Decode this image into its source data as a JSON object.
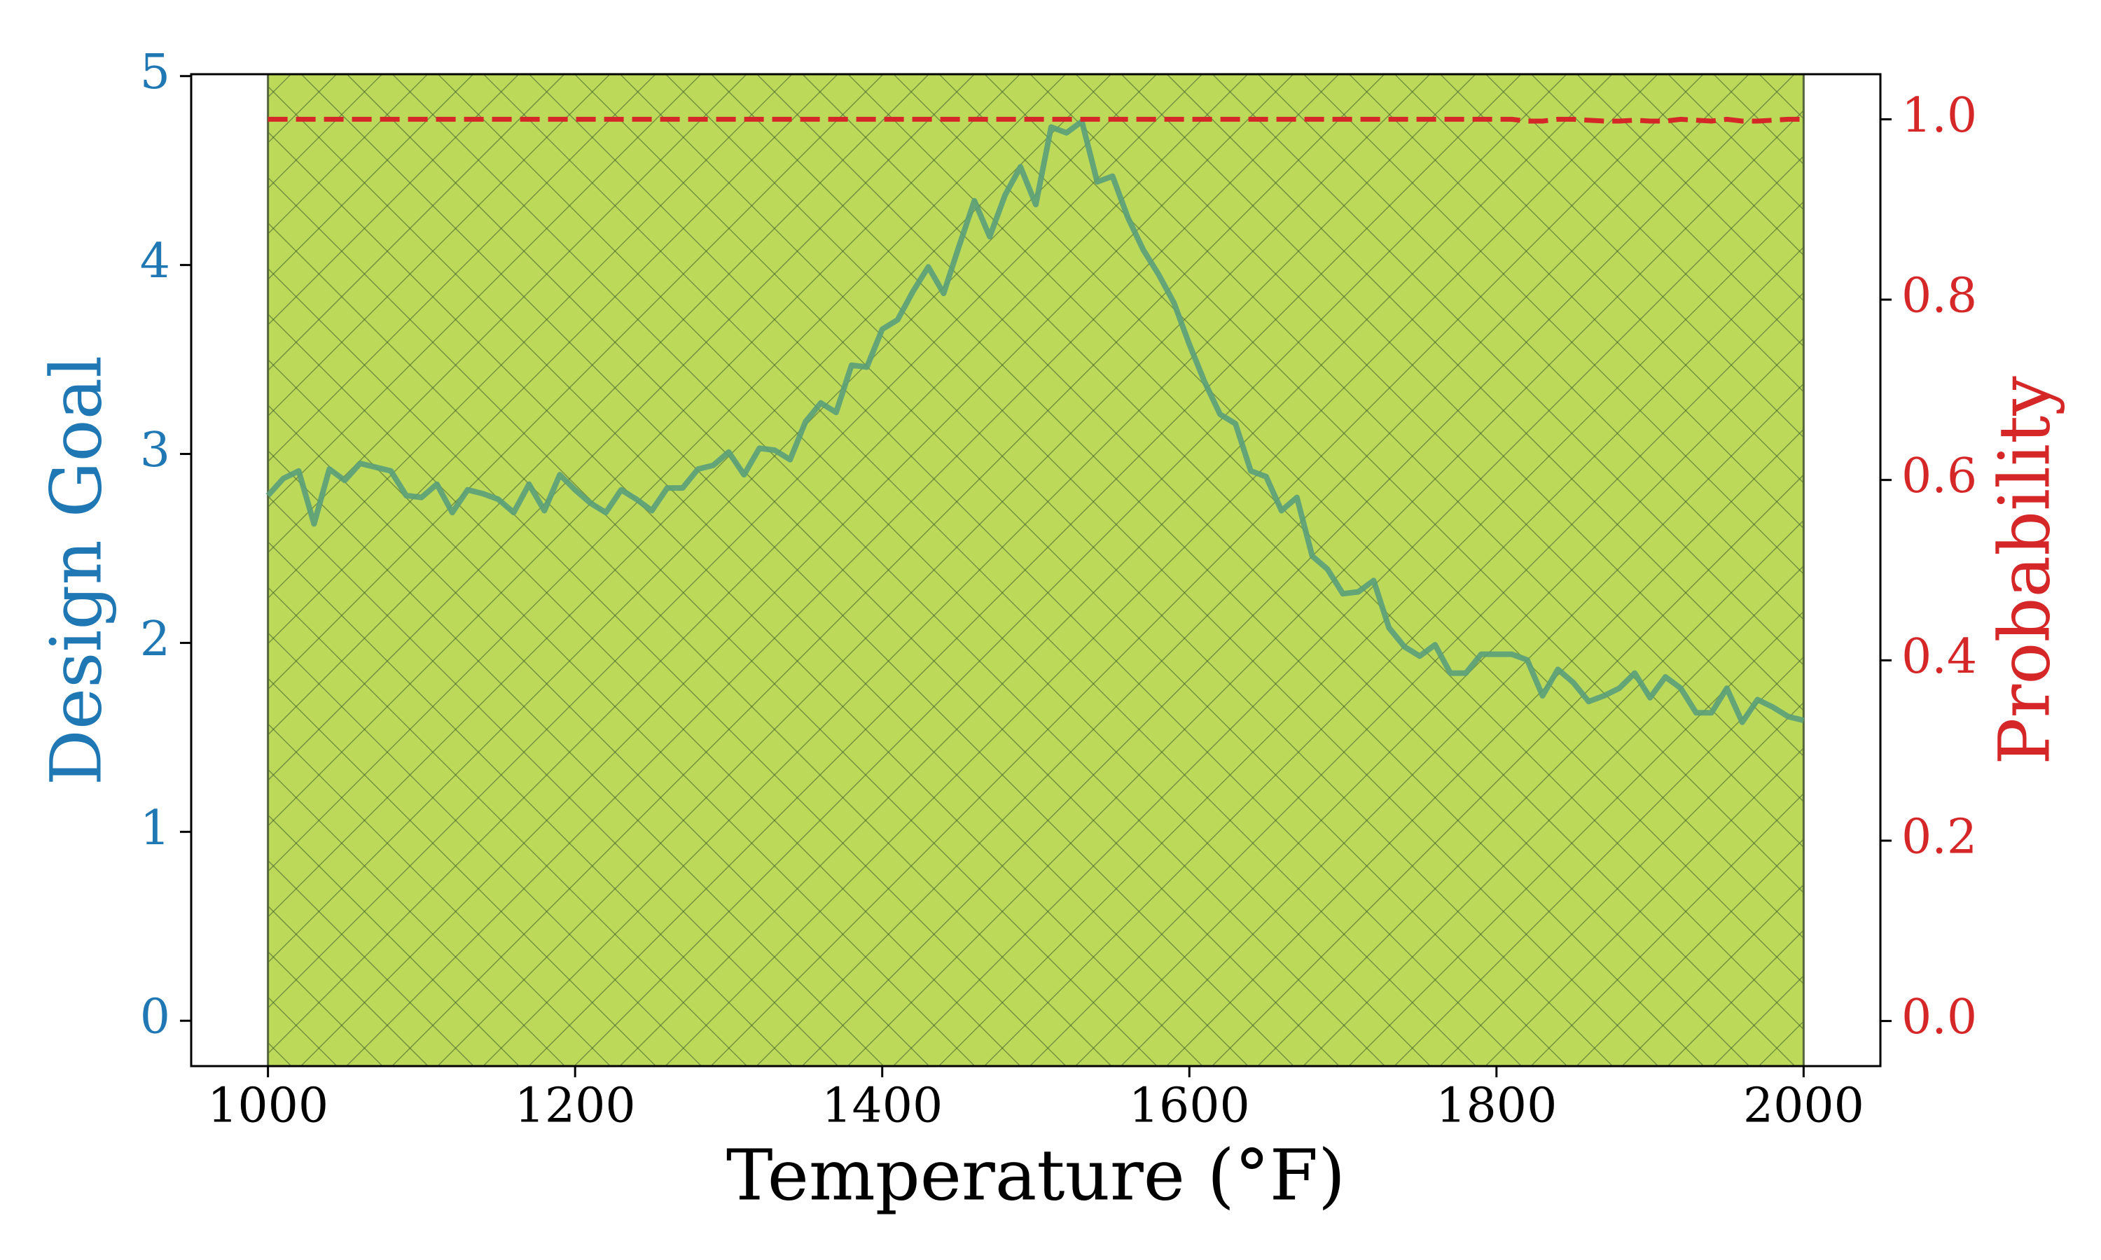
{
  "chart_data": {
    "type": "line",
    "x_label": "Temperature (°F)",
    "y_label": "Design Goal",
    "y2_label": "Probability",
    "xlim": [
      950,
      2050
    ],
    "xticks": [
      1000,
      1200,
      1400,
      1600,
      1800,
      2000
    ],
    "ylim": [
      -0.24,
      5.01
    ],
    "yticks": [
      0,
      1,
      2,
      3,
      4,
      5
    ],
    "y2lim": [
      -0.05,
      1.05
    ],
    "y2ticks": [
      {
        "value": 0,
        "label": "0.0"
      },
      {
        "value": 0.2,
        "label": "0.2"
      },
      {
        "value": 0.4,
        "label": "0.4"
      },
      {
        "value": 0.6,
        "label": "0.6"
      },
      {
        "value": 0.8,
        "label": "0.8"
      },
      {
        "value": 1,
        "label": "1.0"
      }
    ],
    "y_color": "#1f77b4",
    "y2_color": "#d62728",
    "span": {
      "x": [
        1000,
        2000
      ],
      "color": "#bcd95a"
    },
    "x": [
      1000,
      1010,
      1020,
      1030,
      1040,
      1050,
      1060,
      1070,
      1080,
      1090,
      1100,
      1110,
      1120,
      1130,
      1140,
      1150,
      1160,
      1170,
      1180,
      1190,
      1200,
      1210,
      1220,
      1230,
      1240,
      1250,
      1260,
      1270,
      1280,
      1290,
      1300,
      1310,
      1320,
      1330,
      1340,
      1350,
      1360,
      1370,
      1380,
      1390,
      1400,
      1410,
      1420,
      1430,
      1440,
      1450,
      1460,
      1470,
      1480,
      1490,
      1500,
      1510,
      1520,
      1530,
      1540,
      1550,
      1560,
      1570,
      1580,
      1590,
      1600,
      1610,
      1620,
      1630,
      1640,
      1650,
      1660,
      1670,
      1680,
      1690,
      1700,
      1710,
      1720,
      1730,
      1740,
      1750,
      1760,
      1770,
      1780,
      1790,
      1800,
      1810,
      1820,
      1830,
      1840,
      1850,
      1860,
      1870,
      1880,
      1890,
      1900,
      1910,
      1920,
      1930,
      1940,
      1950,
      1960,
      1970,
      1980,
      1990,
      2000
    ],
    "series": [
      {
        "name": "Design Goal",
        "color": "#5a9e7a",
        "values": [
          2.78,
          2.87,
          2.91,
          2.63,
          2.92,
          2.86,
          2.95,
          2.93,
          2.91,
          2.78,
          2.77,
          2.84,
          2.69,
          2.81,
          2.79,
          2.76,
          2.69,
          2.84,
          2.7,
          2.89,
          2.81,
          2.74,
          2.69,
          2.81,
          2.76,
          2.7,
          2.82,
          2.82,
          2.92,
          2.94,
          3.01,
          2.89,
          3.03,
          3.02,
          2.97,
          3.17,
          3.27,
          3.22,
          3.47,
          3.46,
          3.66,
          3.71,
          3.86,
          3.99,
          3.85,
          4.1,
          4.34,
          4.15,
          4.37,
          4.52,
          4.32,
          4.73,
          4.7,
          4.76,
          4.44,
          4.47,
          4.25,
          4.08,
          3.95,
          3.8,
          3.58,
          3.38,
          3.21,
          3.16,
          2.91,
          2.88,
          2.7,
          2.77,
          2.46,
          2.39,
          2.26,
          2.27,
          2.33,
          2.08,
          1.98,
          1.93,
          1.99,
          1.84,
          1.84,
          1.94,
          1.94,
          1.94,
          1.91,
          1.72,
          1.86,
          1.79,
          1.69,
          1.72,
          1.76,
          1.84,
          1.71,
          1.82,
          1.76,
          1.63,
          1.63,
          1.76,
          1.58,
          1.7,
          1.66,
          1.61,
          1.59
        ]
      },
      {
        "name": "Probability",
        "color": "#d62728",
        "axis": "y2",
        "dashed": true,
        "values": [
          1,
          1,
          1,
          1,
          1,
          1,
          1,
          1,
          1,
          1,
          1,
          1,
          1,
          1,
          1,
          1,
          1,
          1,
          1,
          1,
          1,
          1,
          1,
          1,
          1,
          1,
          1,
          1,
          1,
          1,
          1,
          1,
          1,
          1,
          1,
          1,
          1,
          1,
          1,
          1,
          1,
          1,
          1,
          1,
          1,
          1,
          1,
          1,
          1,
          1,
          1,
          1,
          1,
          1,
          1,
          1,
          1,
          1,
          1,
          1,
          1,
          1,
          1,
          1,
          1,
          1,
          1,
          1,
          1,
          1,
          1,
          1,
          1,
          1,
          1,
          1,
          1,
          1,
          1,
          1,
          1,
          1,
          0.998,
          0.998,
          1,
          1,
          0.999,
          0.998,
          0.998,
          0.999,
          0.998,
          0.998,
          1,
          0.999,
          0.998,
          1,
          0.998,
          0.998,
          0.999,
          1,
          1
        ]
      }
    ]
  }
}
